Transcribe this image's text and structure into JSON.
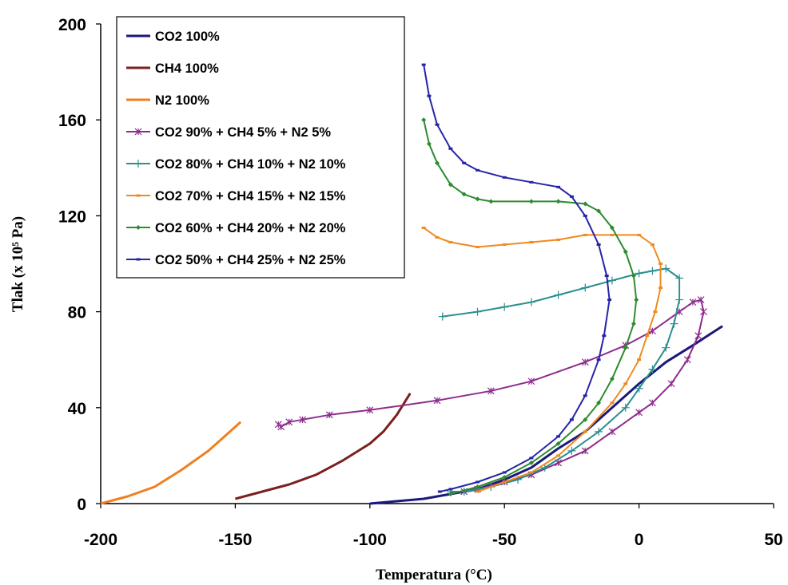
{
  "chart_data": {
    "type": "line",
    "title": "",
    "xlabel": "Temperatura (°C)",
    "ylabel": "Tlak (x 10⁵ Pa)",
    "xlim": [
      -200,
      50
    ],
    "ylim": [
      0,
      200
    ],
    "x_ticks": [
      "-200",
      "-150",
      "-100",
      "-50",
      "0",
      "50"
    ],
    "y_ticks": [
      "0",
      "40",
      "80",
      "120",
      "160",
      "200"
    ],
    "grid": false,
    "legend_position": "top-left",
    "series": [
      {
        "name": "CO2 100%",
        "color": "#1a1a7a",
        "marker": "none",
        "points": [
          [
            -100,
            0
          ],
          [
            -80,
            2
          ],
          [
            -60,
            6
          ],
          [
            -50,
            10
          ],
          [
            -40,
            15
          ],
          [
            -30,
            23
          ],
          [
            -20,
            30
          ],
          [
            -10,
            40
          ],
          [
            0,
            50
          ],
          [
            10,
            59
          ],
          [
            20,
            66
          ],
          [
            31,
            74
          ]
        ]
      },
      {
        "name": "CH4 100%",
        "color": "#7b1f1f",
        "marker": "none",
        "points": [
          [
            -150,
            2
          ],
          [
            -140,
            5
          ],
          [
            -130,
            8
          ],
          [
            -120,
            12
          ],
          [
            -110,
            18
          ],
          [
            -100,
            25
          ],
          [
            -95,
            30
          ],
          [
            -90,
            37
          ],
          [
            -85,
            46
          ]
        ]
      },
      {
        "name": "N2 100%",
        "color": "#f07f1f",
        "marker": "none",
        "points": [
          [
            -200,
            0
          ],
          [
            -190,
            3
          ],
          [
            -180,
            7
          ],
          [
            -170,
            14
          ],
          [
            -160,
            22
          ],
          [
            -155,
            27
          ],
          [
            -148,
            34
          ]
        ]
      },
      {
        "name": "CO2 90% + CH4 5% + N2 5%",
        "color": "#8e2c8e",
        "marker": "star",
        "points": [
          [
            -134,
            33
          ],
          [
            -133,
            32
          ],
          [
            -130,
            34
          ],
          [
            -125,
            35
          ],
          [
            -115,
            37
          ],
          [
            -100,
            39
          ],
          [
            -75,
            43
          ],
          [
            -55,
            47
          ],
          [
            -40,
            51
          ],
          [
            -20,
            59
          ],
          [
            -5,
            66
          ],
          [
            5,
            72
          ],
          [
            15,
            80
          ],
          [
            20,
            84
          ],
          [
            23,
            85
          ],
          [
            24,
            80
          ],
          [
            22,
            70
          ],
          [
            18,
            60
          ],
          [
            12,
            50
          ],
          [
            5,
            42
          ],
          [
            0,
            38
          ],
          [
            -10,
            30
          ],
          [
            -20,
            22
          ],
          [
            -30,
            17
          ],
          [
            -40,
            12
          ],
          [
            -50,
            9
          ],
          [
            -60,
            6
          ],
          [
            -65,
            5
          ]
        ]
      },
      {
        "name": "CO2 80% + CH4 10% + N2 10%",
        "color": "#2b8f8f",
        "marker": "plus",
        "points": [
          [
            -73,
            78
          ],
          [
            -60,
            80
          ],
          [
            -50,
            82
          ],
          [
            -40,
            84
          ],
          [
            -30,
            87
          ],
          [
            -20,
            90
          ],
          [
            -10,
            93
          ],
          [
            0,
            96
          ],
          [
            5,
            97
          ],
          [
            10,
            98
          ],
          [
            15,
            94
          ],
          [
            15,
            85
          ],
          [
            13,
            75
          ],
          [
            10,
            65
          ],
          [
            5,
            56
          ],
          [
            0,
            48
          ],
          [
            -5,
            40
          ],
          [
            -15,
            30
          ],
          [
            -25,
            22
          ],
          [
            -35,
            15
          ],
          [
            -45,
            10
          ],
          [
            -55,
            7
          ],
          [
            -65,
            5
          ],
          [
            -70,
            5
          ]
        ]
      },
      {
        "name": "CO2 70% + CH4 15% + N2 15%",
        "color": "#f08a1e",
        "marker": "dash",
        "points": [
          [
            -80,
            115
          ],
          [
            -75,
            111
          ],
          [
            -70,
            109
          ],
          [
            -60,
            107
          ],
          [
            -50,
            108
          ],
          [
            -40,
            109
          ],
          [
            -30,
            110
          ],
          [
            -20,
            112
          ],
          [
            -10,
            112
          ],
          [
            0,
            112
          ],
          [
            5,
            108
          ],
          [
            8,
            100
          ],
          [
            8,
            90
          ],
          [
            6,
            80
          ],
          [
            3,
            70
          ],
          [
            0,
            60
          ],
          [
            -5,
            50
          ],
          [
            -10,
            42
          ],
          [
            -20,
            30
          ],
          [
            -30,
            20
          ],
          [
            -40,
            13
          ],
          [
            -50,
            9
          ],
          [
            -60,
            5
          ]
        ]
      },
      {
        "name": "CO2 60% + CH4 20% + N2 20%",
        "color": "#2e8b2e",
        "marker": "diamond",
        "points": [
          [
            -80,
            160
          ],
          [
            -78,
            150
          ],
          [
            -75,
            142
          ],
          [
            -70,
            133
          ],
          [
            -65,
            129
          ],
          [
            -60,
            127
          ],
          [
            -55,
            126
          ],
          [
            -40,
            126
          ],
          [
            -30,
            126
          ],
          [
            -20,
            125
          ],
          [
            -15,
            122
          ],
          [
            -10,
            115
          ],
          [
            -5,
            105
          ],
          [
            -2,
            95
          ],
          [
            -1,
            85
          ],
          [
            -2,
            75
          ],
          [
            -5,
            65
          ],
          [
            -10,
            52
          ],
          [
            -15,
            42
          ],
          [
            -20,
            35
          ],
          [
            -30,
            25
          ],
          [
            -40,
            17
          ],
          [
            -50,
            11
          ],
          [
            -60,
            7
          ],
          [
            -70,
            4
          ]
        ]
      },
      {
        "name": "CO2 50% + CH4 25% + N2 25%",
        "color": "#2424a8",
        "marker": "dash",
        "points": [
          [
            -80,
            183
          ],
          [
            -78,
            170
          ],
          [
            -75,
            158
          ],
          [
            -70,
            148
          ],
          [
            -65,
            142
          ],
          [
            -60,
            139
          ],
          [
            -50,
            136
          ],
          [
            -40,
            134
          ],
          [
            -30,
            132
          ],
          [
            -25,
            128
          ],
          [
            -20,
            120
          ],
          [
            -15,
            108
          ],
          [
            -12,
            95
          ],
          [
            -11,
            85
          ],
          [
            -13,
            70
          ],
          [
            -15,
            60
          ],
          [
            -20,
            45
          ],
          [
            -25,
            35
          ],
          [
            -30,
            28
          ],
          [
            -40,
            19
          ],
          [
            -50,
            13
          ],
          [
            -60,
            9
          ],
          [
            -70,
            6
          ],
          [
            -74,
            5
          ]
        ]
      }
    ]
  }
}
